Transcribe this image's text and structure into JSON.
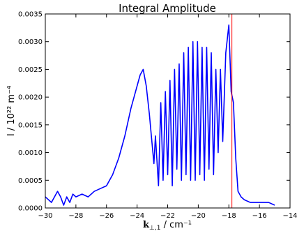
{
  "chart_data": {
    "type": "line",
    "title": "Integral Amplitude",
    "xlabel": [
      "k",
      "⊥,1",
      " / cm⁻¹"
    ],
    "ylabel": "I / 10²² m⁻⁴",
    "x": [
      -30,
      -29.8,
      -29.6,
      -29.4,
      -29.2,
      -29.0,
      -28.8,
      -28.6,
      -28.4,
      -28.2,
      -28.0,
      -27.6,
      -27.2,
      -26.8,
      -26.4,
      -26.0,
      -25.6,
      -25.2,
      -24.8,
      -24.4,
      -24.0,
      -23.8,
      -23.6,
      -23.4,
      -23.2,
      -23.0,
      -22.9,
      -22.8,
      -22.6,
      -22.45,
      -22.3,
      -22.15,
      -22.0,
      -21.85,
      -21.7,
      -21.55,
      -21.4,
      -21.25,
      -21.1,
      -20.95,
      -20.8,
      -20.65,
      -20.5,
      -20.35,
      -20.2,
      -20.05,
      -19.9,
      -19.75,
      -19.6,
      -19.45,
      -19.3,
      -19.15,
      -19.0,
      -18.85,
      -18.7,
      -18.55,
      -18.4,
      -18.2,
      -18.0,
      -17.85,
      -17.7,
      -17.55,
      -17.4,
      -17.2,
      -17.0,
      -16.6,
      -16.2,
      -15.8,
      -15.4,
      -15.0
    ],
    "series": [
      {
        "color": "#0000ff",
        "values": [
          0.0002,
          0.00015,
          0.0001,
          0.0002,
          0.0003,
          0.0002,
          5e-05,
          0.0002,
          0.0001,
          0.00025,
          0.0002,
          0.00025,
          0.0002,
          0.0003,
          0.00035,
          0.0004,
          0.0006,
          0.0009,
          0.0013,
          0.0018,
          0.0022,
          0.0024,
          0.0025,
          0.0022,
          0.0017,
          0.0011,
          0.0008,
          0.0013,
          0.0004,
          0.0019,
          0.0005,
          0.0021,
          0.0006,
          0.0023,
          0.0004,
          0.0025,
          0.0007,
          0.0026,
          0.0005,
          0.0028,
          0.0006,
          0.0029,
          0.0005,
          0.003,
          0.0005,
          0.003,
          0.0006,
          0.0029,
          0.0005,
          0.0029,
          0.0007,
          0.0028,
          0.0006,
          0.0025,
          0.001,
          0.0025,
          0.0012,
          0.0028,
          0.0033,
          0.0021,
          0.0019,
          0.0009,
          0.0003,
          0.0002,
          0.00015,
          0.0001,
          0.0001,
          0.0001,
          0.0001,
          5e-05
        ]
      }
    ],
    "vline": {
      "x": -17.8,
      "color": "#ff0000"
    },
    "xlim": [
      -30,
      -14
    ],
    "xticks": [
      {
        "value": -30,
        "label": "−30"
      },
      {
        "value": -28,
        "label": "−28"
      },
      {
        "value": -26,
        "label": "−26"
      },
      {
        "value": -24,
        "label": "−24"
      },
      {
        "value": -22,
        "label": "−22"
      },
      {
        "value": -20,
        "label": "−20"
      },
      {
        "value": -18,
        "label": "−18"
      },
      {
        "value": -16,
        "label": "−16"
      },
      {
        "value": -14,
        "label": "−14"
      }
    ],
    "ylim": [
      0,
      0.0035
    ],
    "yticks": [
      {
        "value": 0,
        "label": "0.0000"
      },
      {
        "value": 0.0005,
        "label": "0.0005"
      },
      {
        "value": 0.001,
        "label": "0.0010"
      },
      {
        "value": 0.0015,
        "label": "0.0015"
      },
      {
        "value": 0.002,
        "label": "0.0020"
      },
      {
        "value": 0.0025,
        "label": "0.0025"
      },
      {
        "value": 0.003,
        "label": "0.0030"
      },
      {
        "value": 0.0035,
        "label": "0.0035"
      }
    ]
  }
}
